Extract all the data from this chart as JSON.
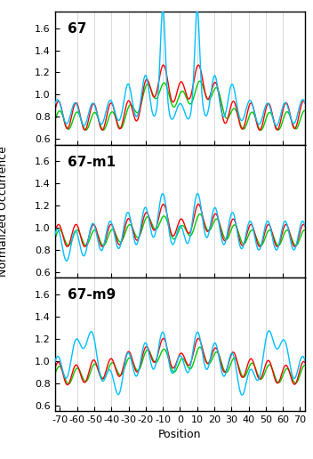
{
  "title_67": "67",
  "title_m1": "67-m1",
  "title_m9": "67-m9",
  "ylabel": "Normalized Occurrence",
  "xlabel": "Position",
  "xlim": [
    -73,
    73
  ],
  "ylim": [
    0.55,
    1.75
  ],
  "yticks": [
    0.6,
    0.8,
    1.0,
    1.2,
    1.4,
    1.6
  ],
  "xticks": [
    -70,
    -60,
    -50,
    -40,
    -30,
    -20,
    -10,
    0,
    10,
    20,
    30,
    40,
    50,
    60,
    70
  ],
  "vlines": [
    -60,
    -50,
    -40,
    -30,
    -20,
    -10,
    0,
    10,
    20,
    30,
    40,
    50,
    60
  ],
  "color_cyan": "#00BFFF",
  "color_red": "#FF0000",
  "color_green": "#00CC00",
  "linewidth_cyan": 1.0,
  "linewidth_red": 1.0,
  "linewidth_green": 1.0,
  "title_fontsize": 11,
  "label_fontsize": 9,
  "tick_fontsize": 8
}
